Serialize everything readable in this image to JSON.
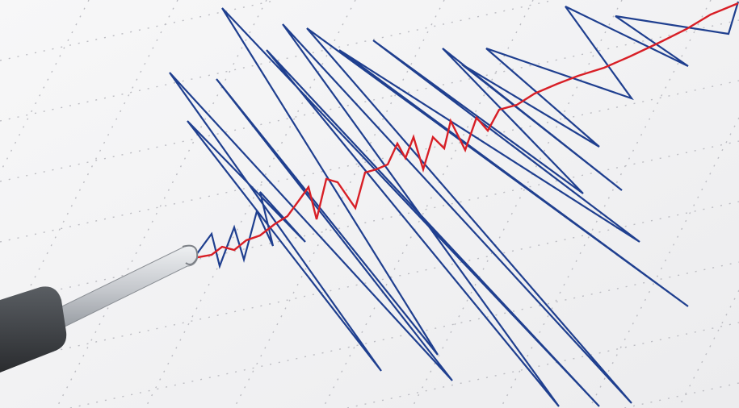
{
  "scene": {
    "subject": "seismograph-recording",
    "colors": {
      "paper": "#f4f4f5",
      "grid": "#b9b9bf",
      "trace_main": "#1f3f8f",
      "trace_highlight": "#d81f26",
      "stylus_rod": "#c9cbcf",
      "stylus_handle": "#3b3e42"
    }
  }
}
